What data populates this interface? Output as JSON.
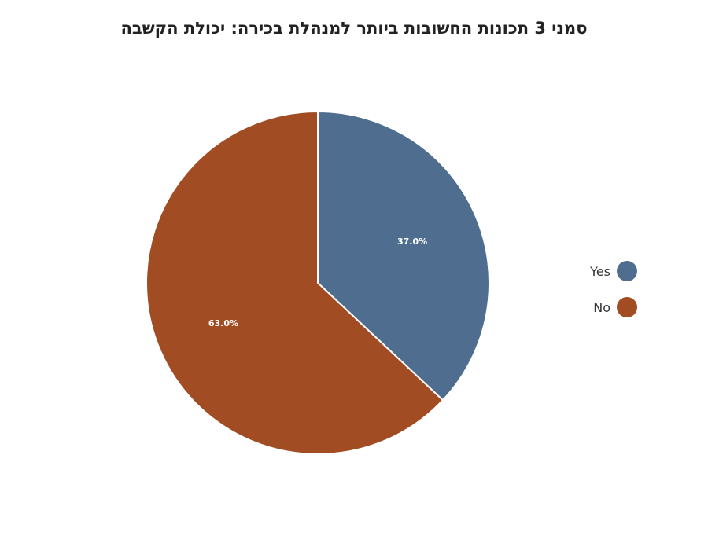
{
  "chart_data": {
    "type": "pie",
    "title": "סמני 3 תכונות החשובות ביותר למנהלת בכירה: יכולת הקשבה",
    "categories": [
      "Yes",
      "No"
    ],
    "values": [
      37.0,
      63.0
    ],
    "labels": [
      "37.0%",
      "63.0%"
    ],
    "colors": [
      "#4f6d8f",
      "#a14c22"
    ],
    "legend_position": "right"
  }
}
